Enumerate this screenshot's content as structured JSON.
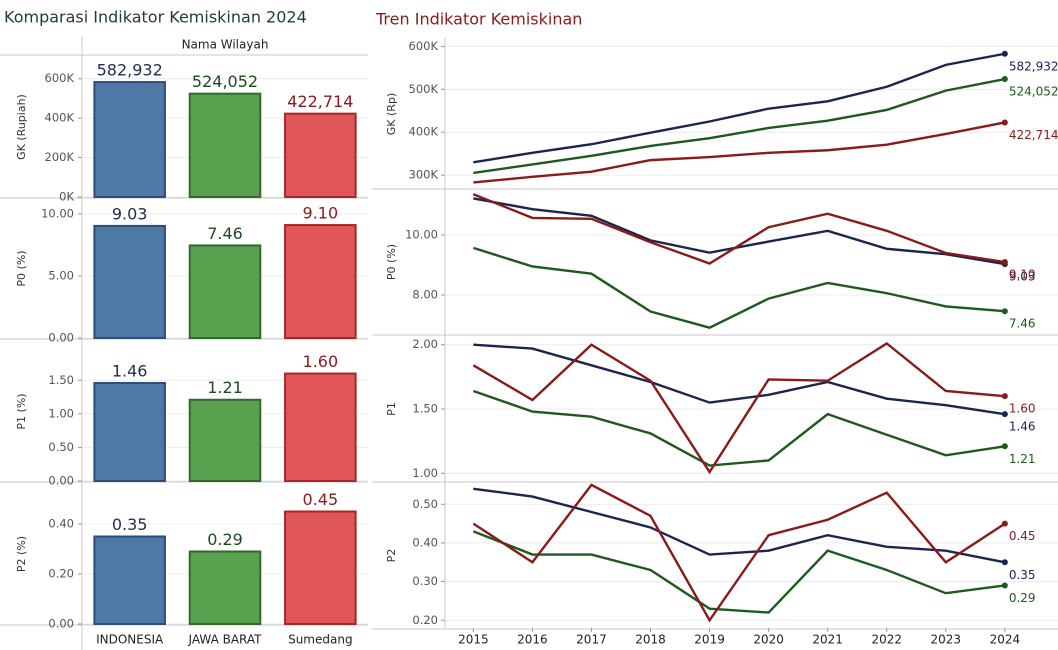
{
  "chart_data": [
    {
      "type": "bar",
      "title": "Komparasi Indikator Kemiskinan 2024",
      "header": "Nama Wilayah",
      "categories": [
        "INDONESIA",
        "JAWA BARAT",
        "Sumedang"
      ],
      "colors": [
        "#4e79a7",
        "#59a14f",
        "#e15759"
      ],
      "stroke_colors": [
        "#2b4e7a",
        "#2f6b2a",
        "#a82628"
      ],
      "label_colors": [
        "#1f2d4f",
        "#1e4a1e",
        "#8b1a1a"
      ],
      "panels": [
        {
          "ylabel": "GK (Rupiah)",
          "values": [
            582932,
            524052,
            422714
          ],
          "value_labels": [
            "582,932",
            "524,052",
            "422,714"
          ],
          "ylim": [
            0,
            710000
          ],
          "yticks": [
            {
              "value": 0,
              "label": "0K"
            },
            {
              "value": 200000,
              "label": "200K"
            },
            {
              "value": 400000,
              "label": "400K"
            },
            {
              "value": 600000,
              "label": "600K"
            }
          ]
        },
        {
          "ylabel": "P0 (%)",
          "values": [
            9.03,
            7.46,
            9.1
          ],
          "value_labels": [
            "9.03",
            "7.46",
            "9.10"
          ],
          "ylim": [
            0,
            11.2
          ],
          "yticks": [
            {
              "value": 0,
              "label": "0.00"
            },
            {
              "value": 5,
              "label": "5.00"
            },
            {
              "value": 10,
              "label": "10.00"
            }
          ]
        },
        {
          "ylabel": "P1 (%)",
          "values": [
            1.46,
            1.21,
            1.6
          ],
          "value_labels": [
            "1.46",
            "1.21",
            "1.60"
          ],
          "ylim": [
            0,
            2.07
          ],
          "yticks": [
            {
              "value": 0,
              "label": "0.00"
            },
            {
              "value": 0.5,
              "label": "0.50"
            },
            {
              "value": 1,
              "label": "1.00"
            },
            {
              "value": 1.5,
              "label": "1.50"
            }
          ]
        },
        {
          "ylabel": "P2 (%)",
          "values": [
            0.35,
            0.29,
            0.45
          ],
          "value_labels": [
            "0.35",
            "0.29",
            "0.45"
          ],
          "ylim": [
            0,
            0.56
          ],
          "yticks": [
            {
              "value": 0,
              "label": "0.00"
            },
            {
              "value": 0.2,
              "label": "0.20"
            },
            {
              "value": 0.4,
              "label": "0.40"
            }
          ]
        }
      ]
    },
    {
      "type": "line",
      "title": "Tren Indikator Kemiskinan",
      "x": [
        2015,
        2016,
        2017,
        2018,
        2019,
        2020,
        2021,
        2022,
        2023,
        2024
      ],
      "xlim": [
        2014.52,
        2024.9
      ],
      "panels": [
        {
          "ylabel": "GK (Rp)",
          "ylim": [
            270000,
            615000
          ],
          "yticks": [
            {
              "value": 300000,
              "label": "300K"
            },
            {
              "value": 400000,
              "label": "400K"
            },
            {
              "value": 500000,
              "label": "500K"
            },
            {
              "value": 600000,
              "label": "600K"
            }
          ],
          "series": [
            {
              "color": "#1a2550",
              "values": [
                330000,
                352000,
                372000,
                399000,
                425000,
                455000,
                472000,
                506000,
                557000,
                582932
              ],
              "end_label": "582,932"
            },
            {
              "color": "#1e5a1e",
              "values": [
                305000,
                325000,
                345000,
                368000,
                386000,
                410000,
                427000,
                452000,
                497000,
                524052
              ],
              "end_label": "524,052"
            },
            {
              "color": "#8b1a1a",
              "values": [
                283000,
                296000,
                308000,
                335000,
                342000,
                352000,
                358000,
                371000,
                396000,
                422714
              ],
              "end_label": "422,714"
            }
          ]
        },
        {
          "ylabel": "P0 (%)",
          "ylim": [
            6.7,
            11.5
          ],
          "yticks": [
            {
              "value": 8,
              "label": "8.00"
            },
            {
              "value": 10,
              "label": "10.00"
            }
          ],
          "series": [
            {
              "color": "#1a2550",
              "values": [
                11.22,
                10.86,
                10.64,
                9.82,
                9.41,
                9.78,
                10.14,
                9.54,
                9.36,
                9.03
              ],
              "end_label": "9.03"
            },
            {
              "color": "#1e5a1e",
              "values": [
                9.57,
                8.95,
                8.71,
                7.45,
                6.91,
                7.88,
                8.4,
                8.06,
                7.62,
                7.46
              ],
              "end_label": "7.46"
            },
            {
              "color": "#8b1a1a",
              "values": [
                11.36,
                10.57,
                10.54,
                9.76,
                9.05,
                10.26,
                10.71,
                10.14,
                9.4,
                9.1
              ],
              "end_label": "9.10"
            }
          ]
        },
        {
          "ylabel": "P1",
          "ylim": [
            0.94,
            2.06
          ],
          "yticks": [
            {
              "value": 1,
              "label": "1.00"
            },
            {
              "value": 1.5,
              "label": "1.50"
            },
            {
              "value": 2,
              "label": "2.00"
            }
          ],
          "series": [
            {
              "color": "#1a2550",
              "values": [
                2.0,
                1.97,
                1.84,
                1.71,
                1.55,
                1.61,
                1.71,
                1.58,
                1.53,
                1.46
              ],
              "end_label": "1.46"
            },
            {
              "color": "#1e5a1e",
              "values": [
                1.64,
                1.48,
                1.44,
                1.31,
                1.06,
                1.1,
                1.46,
                1.3,
                1.14,
                1.21
              ],
              "end_label": "1.21"
            },
            {
              "color": "#8b1a1a",
              "values": [
                1.84,
                1.57,
                2.0,
                1.72,
                1.01,
                1.73,
                1.72,
                2.01,
                1.64,
                1.6
              ],
              "end_label": "1.60"
            }
          ]
        },
        {
          "ylabel": "P2",
          "ylim": [
            0.18,
            0.555
          ],
          "yticks": [
            {
              "value": 0.2,
              "label": "0.20"
            },
            {
              "value": 0.3,
              "label": "0.30"
            },
            {
              "value": 0.4,
              "label": "0.40"
            },
            {
              "value": 0.5,
              "label": "0.50"
            }
          ],
          "series": [
            {
              "color": "#1a2550",
              "values": [
                0.54,
                0.52,
                0.48,
                0.44,
                0.37,
                0.38,
                0.42,
                0.39,
                0.38,
                0.35
              ],
              "end_label": "0.35"
            },
            {
              "color": "#1e5a1e",
              "values": [
                0.43,
                0.37,
                0.37,
                0.33,
                0.23,
                0.22,
                0.38,
                0.33,
                0.27,
                0.29
              ],
              "end_label": "0.29"
            },
            {
              "color": "#8b1a1a",
              "values": [
                0.45,
                0.35,
                0.55,
                0.47,
                0.2,
                0.42,
                0.46,
                0.53,
                0.35,
                0.45
              ],
              "end_label": "0.45"
            }
          ]
        }
      ]
    }
  ]
}
